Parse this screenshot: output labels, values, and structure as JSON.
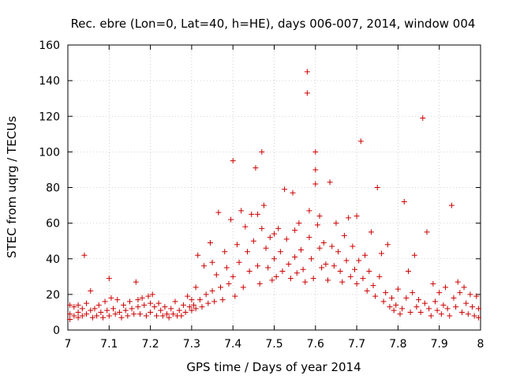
{
  "chart_data": {
    "type": "scatter",
    "title": "Rec. ebre (Lon=0, Lat=40, h=HE), days 006-007, 2014, window 004",
    "xlabel": "GPS time / Days of year 2014",
    "ylabel": "STEC from uqrg / TECUs",
    "xlim": [
      7.0,
      8.0
    ],
    "ylim": [
      0,
      160
    ],
    "xticks": [
      7.0,
      7.1,
      7.2,
      7.3,
      7.4,
      7.5,
      7.6,
      7.7,
      7.8,
      7.9,
      8.0
    ],
    "xtick_labels": [
      "7",
      "7.1",
      "7.2",
      "7.3",
      "7.4",
      "7.5",
      "7.6",
      "7.7",
      "7.8",
      "7.9",
      "8"
    ],
    "yticks": [
      0,
      20,
      40,
      60,
      80,
      100,
      120,
      140,
      160
    ],
    "ytick_labels": [
      "0",
      "20",
      "40",
      "60",
      "80",
      "100",
      "120",
      "140",
      "160"
    ],
    "grid": true,
    "marker": "+",
    "color": "#cc0000",
    "series": [
      {
        "name": "STEC",
        "points": [
          [
            7.005,
            14
          ],
          [
            7.005,
            9
          ],
          [
            7.005,
            6
          ],
          [
            7.015,
            13
          ],
          [
            7.015,
            8
          ],
          [
            7.025,
            14
          ],
          [
            7.025,
            10
          ],
          [
            7.025,
            7
          ],
          [
            7.035,
            12
          ],
          [
            7.035,
            8
          ],
          [
            7.04,
            42
          ],
          [
            7.045,
            15
          ],
          [
            7.045,
            9
          ],
          [
            7.055,
            22
          ],
          [
            7.055,
            11
          ],
          [
            7.06,
            7
          ],
          [
            7.065,
            12
          ],
          [
            7.07,
            8
          ],
          [
            7.075,
            14
          ],
          [
            7.08,
            10
          ],
          [
            7.085,
            7
          ],
          [
            7.09,
            16
          ],
          [
            7.095,
            11
          ],
          [
            7.1,
            29
          ],
          [
            7.1,
            8
          ],
          [
            7.105,
            18
          ],
          [
            7.11,
            12
          ],
          [
            7.115,
            9
          ],
          [
            7.12,
            17
          ],
          [
            7.125,
            10
          ],
          [
            7.13,
            7
          ],
          [
            7.135,
            14
          ],
          [
            7.14,
            11
          ],
          [
            7.145,
            8
          ],
          [
            7.15,
            16
          ],
          [
            7.155,
            12
          ],
          [
            7.16,
            9
          ],
          [
            7.165,
            27
          ],
          [
            7.17,
            17
          ],
          [
            7.17,
            13
          ],
          [
            7.175,
            9
          ],
          [
            7.18,
            18
          ],
          [
            7.185,
            14
          ],
          [
            7.19,
            8
          ],
          [
            7.195,
            19
          ],
          [
            7.2,
            15
          ],
          [
            7.2,
            10
          ],
          [
            7.205,
            20
          ],
          [
            7.21,
            13
          ],
          [
            7.215,
            8
          ],
          [
            7.22,
            15
          ],
          [
            7.225,
            11
          ],
          [
            7.23,
            8
          ],
          [
            7.235,
            13
          ],
          [
            7.24,
            9
          ],
          [
            7.245,
            7
          ],
          [
            7.25,
            12
          ],
          [
            7.255,
            9
          ],
          [
            7.26,
            16
          ],
          [
            7.265,
            8
          ],
          [
            7.27,
            11
          ],
          [
            7.275,
            8
          ],
          [
            7.28,
            14
          ],
          [
            7.285,
            10
          ],
          [
            7.29,
            19
          ],
          [
            7.295,
            13
          ],
          [
            7.3,
            17
          ],
          [
            7.3,
            11
          ],
          [
            7.305,
            14
          ],
          [
            7.31,
            24
          ],
          [
            7.31,
            12
          ],
          [
            7.315,
            42
          ],
          [
            7.32,
            17
          ],
          [
            7.325,
            13
          ],
          [
            7.33,
            36
          ],
          [
            7.335,
            20
          ],
          [
            7.34,
            15
          ],
          [
            7.345,
            49
          ],
          [
            7.35,
            38
          ],
          [
            7.35,
            22
          ],
          [
            7.355,
            16
          ],
          [
            7.36,
            31
          ],
          [
            7.365,
            66
          ],
          [
            7.37,
            24
          ],
          [
            7.375,
            17
          ],
          [
            7.38,
            44
          ],
          [
            7.385,
            35
          ],
          [
            7.39,
            26
          ],
          [
            7.395,
            62
          ],
          [
            7.4,
            95
          ],
          [
            7.4,
            30
          ],
          [
            7.405,
            19
          ],
          [
            7.41,
            48
          ],
          [
            7.415,
            38
          ],
          [
            7.42,
            67
          ],
          [
            7.425,
            24
          ],
          [
            7.43,
            58
          ],
          [
            7.435,
            44
          ],
          [
            7.44,
            33
          ],
          [
            7.445,
            65
          ],
          [
            7.45,
            50
          ],
          [
            7.455,
            91
          ],
          [
            7.46,
            65
          ],
          [
            7.46,
            36
          ],
          [
            7.465,
            26
          ],
          [
            7.47,
            100
          ],
          [
            7.47,
            57
          ],
          [
            7.475,
            70
          ],
          [
            7.48,
            46
          ],
          [
            7.485,
            35
          ],
          [
            7.49,
            52
          ],
          [
            7.495,
            28
          ],
          [
            7.5,
            54
          ],
          [
            7.5,
            40
          ],
          [
            7.505,
            30
          ],
          [
            7.51,
            57
          ],
          [
            7.515,
            44
          ],
          [
            7.52,
            33
          ],
          [
            7.525,
            79
          ],
          [
            7.53,
            51
          ],
          [
            7.535,
            37
          ],
          [
            7.54,
            29
          ],
          [
            7.545,
            77
          ],
          [
            7.55,
            56
          ],
          [
            7.55,
            41
          ],
          [
            7.555,
            32
          ],
          [
            7.56,
            60
          ],
          [
            7.565,
            45
          ],
          [
            7.57,
            34
          ],
          [
            7.575,
            27
          ],
          [
            7.58,
            145
          ],
          [
            7.58,
            133
          ],
          [
            7.585,
            67
          ],
          [
            7.585,
            52
          ],
          [
            7.59,
            40
          ],
          [
            7.595,
            29
          ],
          [
            7.6,
            100
          ],
          [
            7.6,
            90
          ],
          [
            7.6,
            82
          ],
          [
            7.605,
            59
          ],
          [
            7.61,
            64
          ],
          [
            7.61,
            46
          ],
          [
            7.615,
            35
          ],
          [
            7.62,
            49
          ],
          [
            7.625,
            37
          ],
          [
            7.63,
            28
          ],
          [
            7.635,
            83
          ],
          [
            7.64,
            47
          ],
          [
            7.645,
            36
          ],
          [
            7.65,
            60
          ],
          [
            7.655,
            44
          ],
          [
            7.66,
            33
          ],
          [
            7.665,
            27
          ],
          [
            7.67,
            53
          ],
          [
            7.675,
            39
          ],
          [
            7.68,
            63
          ],
          [
            7.685,
            30
          ],
          [
            7.69,
            47
          ],
          [
            7.695,
            34
          ],
          [
            7.7,
            64
          ],
          [
            7.7,
            26
          ],
          [
            7.705,
            39
          ],
          [
            7.71,
            106
          ],
          [
            7.715,
            29
          ],
          [
            7.72,
            42
          ],
          [
            7.725,
            22
          ],
          [
            7.73,
            33
          ],
          [
            7.735,
            55
          ],
          [
            7.74,
            25
          ],
          [
            7.745,
            19
          ],
          [
            7.75,
            80
          ],
          [
            7.755,
            30
          ],
          [
            7.76,
            43
          ],
          [
            7.765,
            16
          ],
          [
            7.77,
            21
          ],
          [
            7.775,
            48
          ],
          [
            7.78,
            13
          ],
          [
            7.785,
            18
          ],
          [
            7.79,
            11
          ],
          [
            7.795,
            14
          ],
          [
            7.8,
            23
          ],
          [
            7.805,
            9
          ],
          [
            7.81,
            12
          ],
          [
            7.815,
            72
          ],
          [
            7.82,
            18
          ],
          [
            7.825,
            33
          ],
          [
            7.83,
            10
          ],
          [
            7.835,
            21
          ],
          [
            7.84,
            42
          ],
          [
            7.845,
            13
          ],
          [
            7.85,
            17
          ],
          [
            7.855,
            10
          ],
          [
            7.86,
            119
          ],
          [
            7.865,
            15
          ],
          [
            7.87,
            55
          ],
          [
            7.875,
            12
          ],
          [
            7.88,
            8
          ],
          [
            7.885,
            26
          ],
          [
            7.89,
            16
          ],
          [
            7.895,
            11
          ],
          [
            7.9,
            21
          ],
          [
            7.905,
            9
          ],
          [
            7.91,
            14
          ],
          [
            7.915,
            24
          ],
          [
            7.92,
            12
          ],
          [
            7.925,
            8
          ],
          [
            7.93,
            70
          ],
          [
            7.935,
            18
          ],
          [
            7.94,
            13
          ],
          [
            7.945,
            27
          ],
          [
            7.95,
            21
          ],
          [
            7.955,
            10
          ],
          [
            7.96,
            24
          ],
          [
            7.965,
            15
          ],
          [
            7.97,
            9
          ],
          [
            7.975,
            20
          ],
          [
            7.98,
            13
          ],
          [
            7.985,
            8
          ],
          [
            7.99,
            19
          ],
          [
            7.995,
            12
          ],
          [
            7.995,
            7
          ]
        ]
      }
    ]
  }
}
